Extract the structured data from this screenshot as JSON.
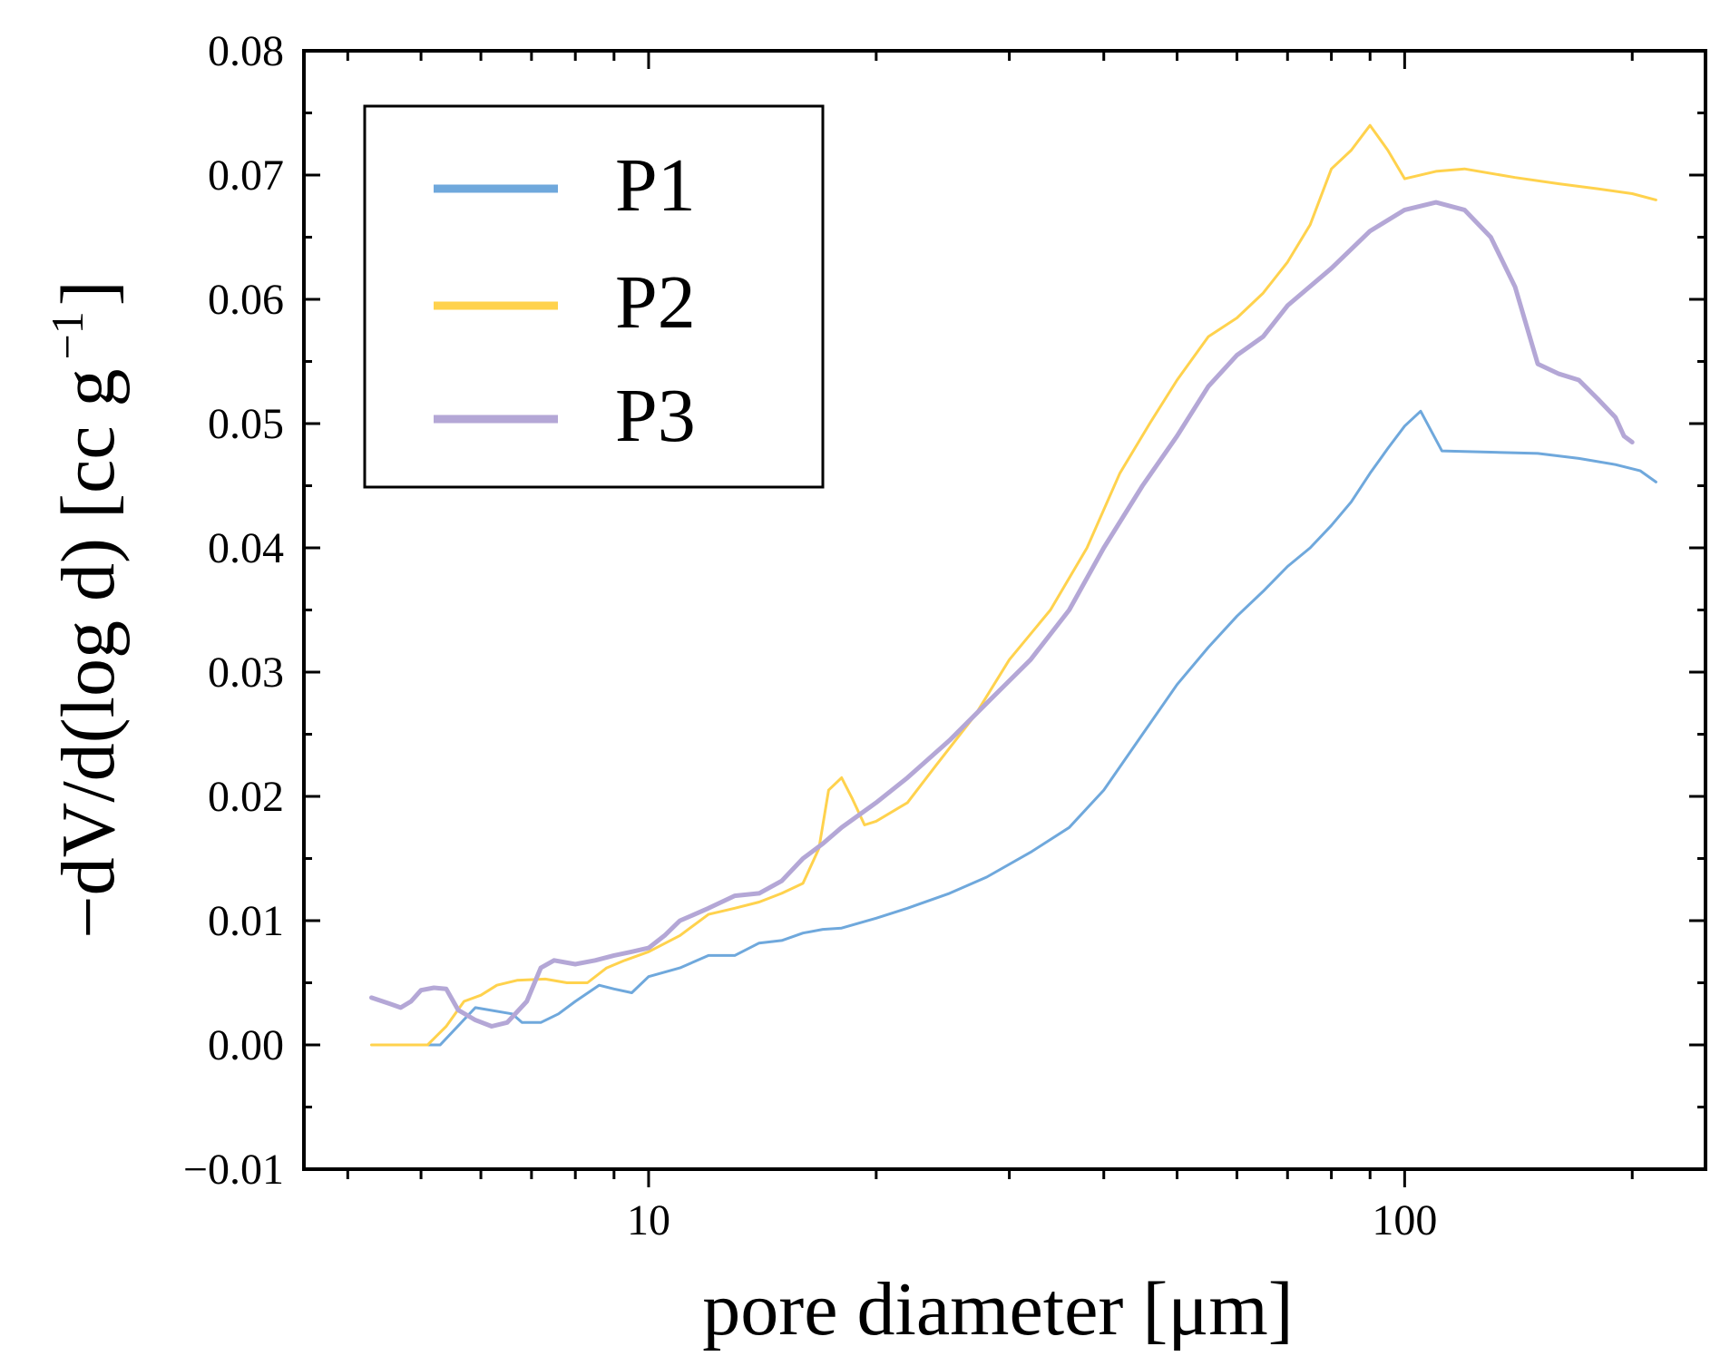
{
  "chart_data": {
    "type": "line",
    "title": "",
    "xlabel": "pore diameter [μm]",
    "ylabel_main": "−dV/d(log d) [cc g",
    "ylabel_sup": "−1",
    "ylabel_close": "]",
    "xscale": "log",
    "xlim": [
      3.5,
      250
    ],
    "ylim": [
      -0.01,
      0.08
    ],
    "x_major_ticks": [
      10,
      100
    ],
    "x_tick_labels": [
      "10",
      "100"
    ],
    "x_minor_ticks": [
      4,
      5,
      6,
      7,
      8,
      9,
      20,
      30,
      40,
      50,
      60,
      70,
      80,
      90,
      200
    ],
    "y_major_ticks": [
      -0.01,
      0.0,
      0.01,
      0.02,
      0.03,
      0.04,
      0.05,
      0.06,
      0.07,
      0.08
    ],
    "y_tick_labels": [
      "−0.01",
      "0.00",
      "0.01",
      "0.02",
      "0.03",
      "0.04",
      "0.05",
      "0.06",
      "0.07",
      "0.08"
    ],
    "grid": false,
    "legend_position": "top-left",
    "series": [
      {
        "name": "P1",
        "color": "#6fa8dc",
        "width": 3,
        "points": [
          [
            4.4,
            0.0
          ],
          [
            5.3,
            0.0
          ],
          [
            5.9,
            0.003
          ],
          [
            6.6,
            0.0025
          ],
          [
            6.8,
            0.0018
          ],
          [
            7.2,
            0.0018
          ],
          [
            7.6,
            0.0025
          ],
          [
            8.0,
            0.0035
          ],
          [
            8.6,
            0.0048
          ],
          [
            9.0,
            0.0045
          ],
          [
            9.5,
            0.0042
          ],
          [
            10,
            0.0055
          ],
          [
            11,
            0.0062
          ],
          [
            12,
            0.0072
          ],
          [
            13,
            0.0072
          ],
          [
            14,
            0.0082
          ],
          [
            15,
            0.0084
          ],
          [
            16,
            0.009
          ],
          [
            17,
            0.0093
          ],
          [
            18,
            0.0094
          ],
          [
            20,
            0.0102
          ],
          [
            22,
            0.011
          ],
          [
            25,
            0.0122
          ],
          [
            28,
            0.0135
          ],
          [
            32,
            0.0155
          ],
          [
            36,
            0.0175
          ],
          [
            40,
            0.0205
          ],
          [
            45,
            0.025
          ],
          [
            50,
            0.029
          ],
          [
            55,
            0.032
          ],
          [
            60,
            0.0345
          ],
          [
            65,
            0.0365
          ],
          [
            70,
            0.0385
          ],
          [
            75,
            0.04
          ],
          [
            80,
            0.0418
          ],
          [
            85,
            0.0437
          ],
          [
            90,
            0.046
          ],
          [
            95,
            0.048
          ],
          [
            100,
            0.0498
          ],
          [
            105,
            0.051
          ],
          [
            112,
            0.0478
          ],
          [
            130,
            0.0477
          ],
          [
            150,
            0.0476
          ],
          [
            170,
            0.0472
          ],
          [
            190,
            0.0467
          ],
          [
            205,
            0.0462
          ],
          [
            215,
            0.0453
          ]
        ]
      },
      {
        "name": "P2",
        "color": "#ffd24d",
        "width": 3,
        "points": [
          [
            4.3,
            0.0
          ],
          [
            5.1,
            0.0
          ],
          [
            5.4,
            0.0015
          ],
          [
            5.7,
            0.0035
          ],
          [
            6.0,
            0.004
          ],
          [
            6.3,
            0.0048
          ],
          [
            6.7,
            0.0052
          ],
          [
            7.3,
            0.0053
          ],
          [
            7.8,
            0.005
          ],
          [
            8.3,
            0.005
          ],
          [
            8.8,
            0.0062
          ],
          [
            9.3,
            0.0068
          ],
          [
            10,
            0.0075
          ],
          [
            11,
            0.0088
          ],
          [
            12,
            0.0105
          ],
          [
            13,
            0.011
          ],
          [
            14,
            0.0115
          ],
          [
            15,
            0.0122
          ],
          [
            16,
            0.013
          ],
          [
            16.8,
            0.0158
          ],
          [
            17.3,
            0.0205
          ],
          [
            18.0,
            0.0215
          ],
          [
            18.6,
            0.0198
          ],
          [
            19.3,
            0.0177
          ],
          [
            20,
            0.018
          ],
          [
            22,
            0.0195
          ],
          [
            24,
            0.0225
          ],
          [
            27,
            0.0265
          ],
          [
            30,
            0.031
          ],
          [
            34,
            0.035
          ],
          [
            38,
            0.04
          ],
          [
            42,
            0.046
          ],
          [
            46,
            0.05
          ],
          [
            50,
            0.0535
          ],
          [
            55,
            0.057
          ],
          [
            60,
            0.0585
          ],
          [
            65,
            0.0605
          ],
          [
            70,
            0.063
          ],
          [
            75,
            0.066
          ],
          [
            80,
            0.0705
          ],
          [
            85,
            0.072
          ],
          [
            90,
            0.074
          ],
          [
            95,
            0.072
          ],
          [
            100,
            0.0697
          ],
          [
            110,
            0.0703
          ],
          [
            120,
            0.0705
          ],
          [
            140,
            0.0698
          ],
          [
            160,
            0.0693
          ],
          [
            180,
            0.0689
          ],
          [
            200,
            0.0685
          ],
          [
            215,
            0.068
          ]
        ]
      },
      {
        "name": "P3",
        "color": "#b4a7d6",
        "width": 5,
        "points": [
          [
            4.3,
            0.0038
          ],
          [
            4.55,
            0.0033
          ],
          [
            4.7,
            0.003
          ],
          [
            4.85,
            0.0035
          ],
          [
            5.0,
            0.0044
          ],
          [
            5.2,
            0.0046
          ],
          [
            5.4,
            0.0045
          ],
          [
            5.6,
            0.0028
          ],
          [
            5.9,
            0.002
          ],
          [
            6.2,
            0.0015
          ],
          [
            6.5,
            0.0018
          ],
          [
            6.9,
            0.0035
          ],
          [
            7.2,
            0.0062
          ],
          [
            7.5,
            0.0068
          ],
          [
            8.0,
            0.0065
          ],
          [
            8.5,
            0.0068
          ],
          [
            9.0,
            0.0072
          ],
          [
            9.5,
            0.0075
          ],
          [
            10,
            0.0078
          ],
          [
            10.5,
            0.0088
          ],
          [
            11,
            0.01
          ],
          [
            11.5,
            0.0105
          ],
          [
            12,
            0.011
          ],
          [
            13,
            0.012
          ],
          [
            14,
            0.0122
          ],
          [
            15,
            0.0132
          ],
          [
            16,
            0.015
          ],
          [
            17,
            0.0162
          ],
          [
            18,
            0.0175
          ],
          [
            20,
            0.0195
          ],
          [
            22,
            0.0215
          ],
          [
            25,
            0.0245
          ],
          [
            28,
            0.0275
          ],
          [
            32,
            0.031
          ],
          [
            36,
            0.035
          ],
          [
            40,
            0.04
          ],
          [
            45,
            0.045
          ],
          [
            50,
            0.049
          ],
          [
            55,
            0.053
          ],
          [
            60,
            0.0555
          ],
          [
            65,
            0.057
          ],
          [
            70,
            0.0595
          ],
          [
            80,
            0.0625
          ],
          [
            90,
            0.0655
          ],
          [
            100,
            0.0672
          ],
          [
            110,
            0.0678
          ],
          [
            120,
            0.0672
          ],
          [
            130,
            0.065
          ],
          [
            140,
            0.061
          ],
          [
            150,
            0.0548
          ],
          [
            160,
            0.054
          ],
          [
            170,
            0.0535
          ],
          [
            180,
            0.052
          ],
          [
            190,
            0.0505
          ],
          [
            195,
            0.049
          ],
          [
            200,
            0.0485
          ]
        ]
      }
    ]
  }
}
